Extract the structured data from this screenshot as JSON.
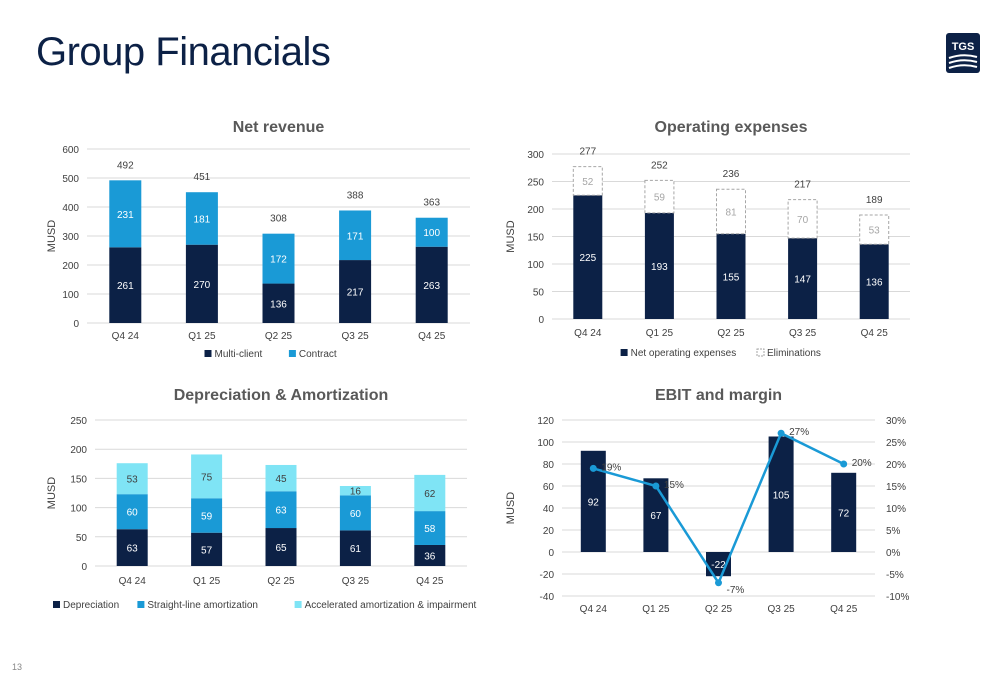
{
  "page": {
    "title": "Group Financials",
    "page_number": "13",
    "logo_text": "TGS"
  },
  "colors": {
    "navy": "#0c2146",
    "blue": "#1a9ad6",
    "cyan": "#7fe4f5",
    "line": "#1a9ad6",
    "grid": "#d9d9d9",
    "axis_text": "#404040"
  },
  "chart_data": [
    {
      "id": "net-revenue",
      "type": "bar",
      "stacked": true,
      "title": "Net revenue",
      "ylabel": "MUSD",
      "categories": [
        "Q4 24",
        "Q1 25",
        "Q2 25",
        "Q3 25",
        "Q4 25"
      ],
      "ylim": [
        0,
        600
      ],
      "yticks": [
        0,
        100,
        200,
        300,
        400,
        500,
        600
      ],
      "series": [
        {
          "name": "Multi-client",
          "values": [
            261,
            270,
            136,
            217,
            263
          ],
          "color": "#0c2146",
          "label_color": "#ffffff"
        },
        {
          "name": "Contract",
          "values": [
            231,
            181,
            172,
            171,
            100
          ],
          "color": "#1a9ad6",
          "label_color": "#ffffff"
        }
      ],
      "totals": [
        492,
        451,
        308,
        388,
        363
      ],
      "legend": "bottom"
    },
    {
      "id": "operating-expenses",
      "type": "bar",
      "stacked": true,
      "title": "Operating expenses",
      "ylabel": "MUSD",
      "categories": [
        "Q4 24",
        "Q1 25",
        "Q2 25",
        "Q3 25",
        "Q4 25"
      ],
      "ylim": [
        0,
        300
      ],
      "yticks": [
        0,
        50,
        100,
        150,
        200,
        250,
        300
      ],
      "series": [
        {
          "name": "Net operating expenses",
          "values": [
            225,
            193,
            155,
            147,
            136
          ],
          "color": "#0c2146",
          "label_color": "#ffffff"
        },
        {
          "name": "Eliminations",
          "values": [
            52,
            59,
            81,
            70,
            53
          ],
          "color": "dashed",
          "label_color": "#a6a6a6"
        }
      ],
      "totals": [
        277,
        252,
        236,
        217,
        189
      ],
      "legend": "bottom"
    },
    {
      "id": "depreciation-amortization",
      "type": "bar",
      "stacked": true,
      "title": "Depreciation & Amortization",
      "ylabel": "MUSD",
      "categories": [
        "Q4 24",
        "Q1 25",
        "Q2 25",
        "Q3 25",
        "Q4 25"
      ],
      "ylim": [
        0,
        250
      ],
      "yticks": [
        0,
        50,
        100,
        150,
        200,
        250
      ],
      "series": [
        {
          "name": "Depreciation",
          "values": [
            63,
            57,
            65,
            61,
            36
          ],
          "color": "#0c2146",
          "label_color": "#ffffff"
        },
        {
          "name": "Straight-line amortization",
          "values": [
            60,
            59,
            63,
            60,
            58
          ],
          "color": "#1a9ad6",
          "label_color": "#ffffff"
        },
        {
          "name": "Accelerated amortization & impairment",
          "values": [
            53,
            75,
            45,
            16,
            62
          ],
          "color": "#7fe4f5",
          "label_color": "#404040"
        }
      ],
      "legend": "bottom"
    },
    {
      "id": "ebit-margin",
      "type": "bar",
      "combo": "bar+line",
      "title": "EBIT and margin",
      "ylabel": "MUSD",
      "categories": [
        "Q4 24",
        "Q1 25",
        "Q2 25",
        "Q3 25",
        "Q4 25"
      ],
      "ylim": [
        -40,
        120
      ],
      "yticks": [
        -40,
        -20,
        0,
        20,
        40,
        60,
        80,
        100,
        120
      ],
      "y2lim": [
        -10,
        30
      ],
      "y2ticks": [
        "-10%",
        "-5%",
        "0%",
        "5%",
        "10%",
        "15%",
        "20%",
        "25%",
        "30%"
      ],
      "bars": {
        "values": [
          92,
          67,
          -22,
          105,
          72
        ],
        "color": "#0c2146",
        "label_color": "#ffffff"
      },
      "line": {
        "values": [
          19,
          15,
          -7,
          27,
          20
        ],
        "labels": [
          "19%",
          "15%",
          "-7%",
          "27%",
          "20%"
        ],
        "color": "#1a9ad6"
      }
    }
  ]
}
